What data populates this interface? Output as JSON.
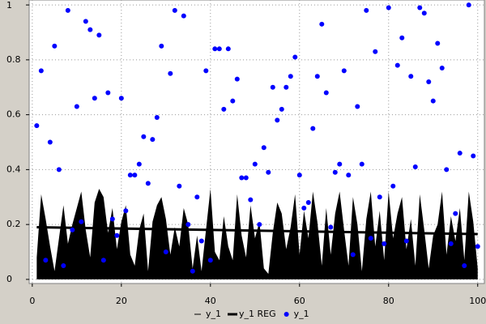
{
  "chart_data": {
    "type": "combo",
    "xlim": [
      -0.7,
      101.5
    ],
    "ylim": [
      -0.015,
      1.018
    ],
    "xticks": [
      0,
      20,
      40,
      60,
      80,
      100
    ],
    "yticks": [
      0,
      0.2,
      0.4,
      0.6,
      0.8,
      1
    ],
    "grid": true,
    "series": [
      {
        "name": "y_1",
        "type": "area",
        "color": "#000000",
        "x": [
          1,
          2,
          3,
          4,
          5,
          6,
          7,
          8,
          9,
          10,
          11,
          12,
          13,
          14,
          15,
          16,
          17,
          18,
          19,
          20,
          21,
          22,
          23,
          24,
          25,
          26,
          27,
          28,
          29,
          30,
          31,
          32,
          33,
          34,
          35,
          36,
          37,
          38,
          39,
          40,
          41,
          42,
          43,
          44,
          45,
          46,
          47,
          48,
          49,
          50,
          51,
          52,
          53,
          54,
          55,
          56,
          57,
          58,
          59,
          60,
          61,
          62,
          63,
          64,
          65,
          66,
          67,
          68,
          69,
          70,
          71,
          72,
          73,
          74,
          75,
          76,
          77,
          78,
          79,
          80,
          81,
          82,
          83,
          84,
          85,
          86,
          87,
          88,
          89,
          90,
          91,
          92,
          93,
          94,
          95,
          96,
          97,
          98,
          99,
          100
        ],
        "values": [
          0.08,
          0.31,
          0.22,
          0.12,
          0.03,
          0.15,
          0.27,
          0.13,
          0.2,
          0.26,
          0.32,
          0.18,
          0.08,
          0.28,
          0.33,
          0.3,
          0.17,
          0.26,
          0.11,
          0.21,
          0.27,
          0.09,
          0.05,
          0.18,
          0.24,
          0.03,
          0.21,
          0.27,
          0.3,
          0.22,
          0.09,
          0.19,
          0.12,
          0.26,
          0.2,
          0.04,
          0.16,
          0.03,
          0.18,
          0.33,
          0.1,
          0.07,
          0.23,
          0.12,
          0.07,
          0.31,
          0.16,
          0.08,
          0.27,
          0.15,
          0.21,
          0.04,
          0.02,
          0.17,
          0.28,
          0.24,
          0.11,
          0.19,
          0.31,
          0.09,
          0.25,
          0.15,
          0.32,
          0.21,
          0.05,
          0.26,
          0.09,
          0.24,
          0.32,
          0.18,
          0.05,
          0.3,
          0.2,
          0.03,
          0.22,
          0.32,
          0.12,
          0.25,
          0.07,
          0.32,
          0.15,
          0.24,
          0.3,
          0.11,
          0.22,
          0.05,
          0.31,
          0.18,
          0.04,
          0.16,
          0.2,
          0.32,
          0.09,
          0.23,
          0.14,
          0.26,
          0.07,
          0.32,
          0.21,
          0.04
        ]
      },
      {
        "name": "y_1 REG",
        "type": "line",
        "color": "#000000",
        "x": [
          1,
          100
        ],
        "values": [
          0.19,
          0.165
        ]
      },
      {
        "name": "y_1",
        "type": "scatter",
        "color": "#0000ff",
        "x": [
          1,
          2,
          3,
          4,
          5,
          6,
          7,
          8,
          9,
          10,
          11,
          12,
          13,
          14,
          15,
          16,
          17,
          18,
          19,
          20,
          21,
          22,
          23,
          24,
          25,
          26,
          27,
          28,
          29,
          30,
          31,
          32,
          33,
          34,
          35,
          36,
          37,
          38,
          39,
          40,
          41,
          42,
          43,
          44,
          45,
          46,
          47,
          48,
          49,
          50,
          51,
          52,
          53,
          54,
          55,
          56,
          57,
          58,
          59,
          60,
          61,
          62,
          63,
          64,
          65,
          66,
          67,
          68,
          69,
          70,
          71,
          72,
          73,
          74,
          75,
          76,
          77,
          78,
          79,
          80,
          81,
          82,
          83,
          84,
          85,
          86,
          87,
          88,
          89,
          90,
          91,
          92,
          93,
          94,
          95,
          96,
          97,
          98,
          99,
          100
        ],
        "values": [
          0.56,
          0.76,
          0.07,
          0.5,
          0.85,
          0.4,
          0.05,
          0.98,
          0.18,
          0.63,
          0.21,
          0.94,
          0.91,
          0.66,
          0.89,
          0.07,
          0.68,
          0.22,
          0.16,
          0.66,
          0.25,
          0.38,
          0.38,
          0.42,
          0.52,
          0.35,
          0.51,
          0.59,
          0.85,
          0.1,
          0.75,
          0.98,
          0.34,
          0.96,
          0.2,
          0.03,
          0.3,
          0.14,
          0.76,
          0.07,
          0.84,
          0.84,
          0.62,
          0.84,
          0.65,
          0.73,
          0.37,
          0.37,
          0.29,
          0.42,
          0.2,
          0.48,
          0.39,
          0.7,
          0.58,
          0.62,
          0.7,
          0.74,
          0.81,
          0.38,
          0.26,
          0.28,
          0.55,
          0.74,
          0.93,
          0.68,
          0.19,
          0.39,
          0.42,
          0.76,
          0.38,
          0.09,
          0.63,
          0.42,
          0.98,
          0.15,
          0.83,
          0.3,
          0.13,
          0.99,
          0.34,
          0.78,
          0.88,
          0.14,
          0.74,
          0.41,
          0.99,
          0.97,
          0.72,
          0.65,
          0.86,
          0.77,
          0.4,
          0.13,
          0.24,
          0.46,
          0.05,
          1.0,
          0.45,
          0.12
        ]
      }
    ]
  }
}
